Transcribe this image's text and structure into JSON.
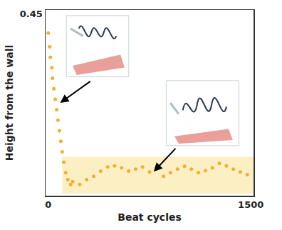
{
  "chart_data": {
    "type": "scatter",
    "x_label": "Beat cycles",
    "y_label": "Height from the wall",
    "x": [
      0,
      10,
      16,
      26,
      31,
      41,
      52,
      62,
      72,
      83,
      93,
      103,
      114,
      129,
      145,
      166,
      181,
      233,
      284,
      336,
      388,
      440,
      491,
      543,
      595,
      647,
      698,
      750,
      802,
      853,
      905,
      957,
      1009,
      1060,
      1112,
      1164,
      1216,
      1267,
      1319,
      1371,
      1422,
      1474
    ],
    "values": [
      0.403,
      0.369,
      0.343,
      0.317,
      0.291,
      0.265,
      0.239,
      0.213,
      0.187,
      0.161,
      0.135,
      0.109,
      0.083,
      0.057,
      0.04,
      0.028,
      0.035,
      0.028,
      0.04,
      0.048,
      0.061,
      0.071,
      0.074,
      0.069,
      0.061,
      0.066,
      0.071,
      0.059,
      0.069,
      0.048,
      0.057,
      0.066,
      0.073,
      0.066,
      0.057,
      0.062,
      0.069,
      0.08,
      0.074,
      0.066,
      0.059,
      0.052
    ],
    "color": "#f0b030",
    "marker": "circle",
    "xlim": [
      -20,
      1520
    ],
    "xticks": [
      0,
      1500
    ],
    "ylim": [
      0,
      0.46
    ],
    "yticks": [
      0.45
    ],
    "grid": false
  }
}
